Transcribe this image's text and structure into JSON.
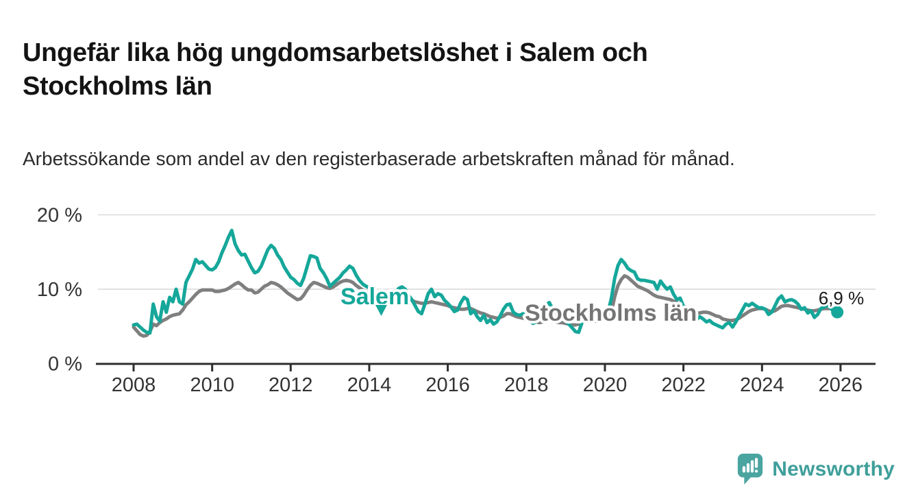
{
  "header": {
    "title": "Ungefär lika hög ungdomsarbetslöshet i Salem och Stockholms län",
    "subtitle": "Arbetssökande som andel av den registerbaserade arbetskraften månad för månad."
  },
  "footer": {
    "brand": "Newsworthy",
    "logo_icon": "speech-bubble-bar-chart-exclamation",
    "brand_color": "#3f9f9a",
    "bubble_color": "#4aa4a0"
  },
  "chart_data": {
    "type": "line",
    "title": "Ungefär lika hög ungdomsarbetslöshet i Salem och Stockholms län",
    "subtitle": "Arbetssökande som andel av den registerbaserade arbetskraften månad för månad.",
    "frequency": "monthly",
    "x_start": "2008-01",
    "x_end": "2025-12",
    "x_ticks": [
      2008,
      2010,
      2012,
      2014,
      2016,
      2018,
      2020,
      2022,
      2024,
      2026
    ],
    "x_tick_labels": [
      "2008",
      "2010",
      "2012",
      "2014",
      "2016",
      "2018",
      "2020",
      "2022",
      "2024",
      "2026"
    ],
    "y_ticks": [
      0,
      10,
      20
    ],
    "y_tick_labels": [
      "0 %",
      "10 %",
      "20 %"
    ],
    "ylim": [
      0,
      20
    ],
    "grid": "horizontal-only",
    "legend_position": "inline-labels-on-lines",
    "style": {
      "grid_color": "#d9d9d9",
      "axis_color": "#2e2e2e",
      "tick_label_color": "#333333"
    },
    "end_annotation": {
      "series": "Salem",
      "label": "6,9 %",
      "value": 6.9
    },
    "series": [
      {
        "name": "Stockholms län",
        "color": "#7f7f7f",
        "values": [
          4.9,
          4.4,
          3.9,
          3.7,
          3.8,
          4.3,
          5.3,
          5.1,
          5.5,
          5.8,
          6.0,
          6.3,
          6.5,
          6.6,
          6.7,
          7.2,
          7.9,
          8.3,
          8.8,
          9.3,
          9.7,
          9.9,
          9.9,
          9.9,
          9.9,
          9.7,
          9.7,
          9.8,
          9.9,
          10.1,
          10.4,
          10.7,
          10.9,
          10.6,
          10.2,
          9.9,
          9.9,
          9.5,
          9.6,
          10.0,
          10.4,
          10.6,
          10.9,
          10.8,
          10.6,
          10.3,
          9.9,
          9.5,
          9.2,
          8.9,
          8.6,
          8.7,
          9.2,
          9.9,
          10.5,
          10.9,
          10.8,
          10.6,
          10.4,
          10.2,
          10.1,
          10.3,
          10.6,
          10.9,
          11.1,
          11.2,
          11.1,
          10.9,
          10.5,
          10.2,
          9.9,
          9.7,
          9.5,
          9.3,
          9.1,
          8.9,
          8.8,
          8.8,
          8.9,
          9.0,
          9.1,
          9.2,
          9.1,
          8.9,
          8.7,
          8.5,
          8.3,
          8.2,
          8.1,
          8.1,
          8.2,
          8.3,
          8.2,
          8.1,
          8.0,
          7.9,
          7.8,
          7.6,
          7.5,
          7.4,
          7.3,
          7.3,
          7.4,
          7.4,
          7.2,
          7.0,
          6.8,
          6.7,
          6.5,
          6.3,
          6.2,
          6.1,
          6.2,
          6.4,
          6.7,
          6.7,
          6.5,
          6.3,
          6.2,
          6.1,
          6.0,
          5.8,
          5.7,
          5.6,
          5.5,
          5.6,
          5.8,
          5.9,
          5.8,
          5.6,
          5.5,
          5.5,
          5.4,
          5.3,
          5.2,
          5.2,
          5.3,
          5.5,
          5.8,
          5.9,
          5.8,
          5.7,
          5.7,
          5.8,
          5.9,
          6.1,
          7.0,
          9.0,
          10.5,
          11.3,
          11.8,
          11.6,
          11.2,
          10.8,
          10.4,
          10.2,
          10.0,
          9.8,
          9.5,
          9.2,
          9.0,
          8.9,
          8.8,
          8.7,
          8.6,
          8.4,
          8.2,
          8.0,
          7.7,
          7.5,
          7.2,
          7.0,
          6.8,
          6.8,
          6.9,
          6.9,
          6.8,
          6.6,
          6.4,
          6.3,
          6.0,
          5.9,
          5.8,
          5.8,
          5.9,
          6.1,
          6.4,
          6.7,
          7.0,
          7.2,
          7.3,
          7.4,
          7.4,
          7.3,
          7.1,
          7.0,
          7.1,
          7.4,
          7.7,
          7.8,
          7.8,
          7.7,
          7.6,
          7.5,
          7.4,
          7.3,
          7.2,
          7.1,
          7.1,
          7.2,
          7.3,
          7.4,
          7.4,
          7.4,
          7.3,
          7.2
        ]
      },
      {
        "name": "Salem",
        "color": "#15a79a",
        "values": [
          5.2,
          5.3,
          4.9,
          4.5,
          4.2,
          4.1,
          8.0,
          6.3,
          5.7,
          8.3,
          6.9,
          8.9,
          8.3,
          10.0,
          8.3,
          8.0,
          10.9,
          11.8,
          12.7,
          14.0,
          13.5,
          13.7,
          13.2,
          12.7,
          12.6,
          12.9,
          13.7,
          14.9,
          15.9,
          17.0,
          17.9,
          16.1,
          15.2,
          14.6,
          14.7,
          13.8,
          12.9,
          12.2,
          12.4,
          13.1,
          14.2,
          15.3,
          15.9,
          15.5,
          14.6,
          14.0,
          13.0,
          12.3,
          11.6,
          11.3,
          10.8,
          10.5,
          11.5,
          13.0,
          14.5,
          14.4,
          14.2,
          12.8,
          12.2,
          11.4,
          10.4,
          10.8,
          11.2,
          11.6,
          12.2,
          12.6,
          13.1,
          12.8,
          11.9,
          11.2,
          10.7,
          10.4,
          10.2,
          9.8,
          9.2,
          8.3,
          7.8,
          8.1,
          8.8,
          9.2,
          9.6,
          10.1,
          10.3,
          10.0,
          9.2,
          8.6,
          7.8,
          7.0,
          6.7,
          8.0,
          9.4,
          10.0,
          9.0,
          9.4,
          9.2,
          8.5,
          8.1,
          7.6,
          7.0,
          7.2,
          8.2,
          8.9,
          8.6,
          6.7,
          7.1,
          6.3,
          5.8,
          6.5,
          5.5,
          5.9,
          5.3,
          5.6,
          6.4,
          7.3,
          7.9,
          8.0,
          6.9,
          6.6,
          6.5,
          6.7,
          6.3,
          5.8,
          5.4,
          5.6,
          6.2,
          7.0,
          7.8,
          8.2,
          7.4,
          6.8,
          6.4,
          6.2,
          5.8,
          5.3,
          4.8,
          4.3,
          4.2,
          5.5,
          6.8,
          7.0,
          6.5,
          6.3,
          6.2,
          6.4,
          6.6,
          7.0,
          8.8,
          11.5,
          13.2,
          14.0,
          13.5,
          12.8,
          12.5,
          12.3,
          11.4,
          11.2,
          11.2,
          11.1,
          11.0,
          10.9,
          10.0,
          11.1,
          10.5,
          10.0,
          10.3,
          9.3,
          8.6,
          8.8,
          7.7,
          7.3,
          6.8,
          6.3,
          5.9,
          6.3,
          6.0,
          5.6,
          5.8,
          5.4,
          5.2,
          5.0,
          4.8,
          5.3,
          5.5,
          4.9,
          5.6,
          6.4,
          7.2,
          8.0,
          7.8,
          8.1,
          7.8,
          7.5,
          7.5,
          7.3,
          6.6,
          6.9,
          7.8,
          8.7,
          9.1,
          8.3,
          8.5,
          8.6,
          8.4,
          8.0,
          7.3,
          7.5,
          6.8,
          7.1,
          6.2,
          6.6,
          7.4,
          7.6,
          7.9,
          7.4,
          7.0,
          6.9
        ]
      }
    ]
  }
}
